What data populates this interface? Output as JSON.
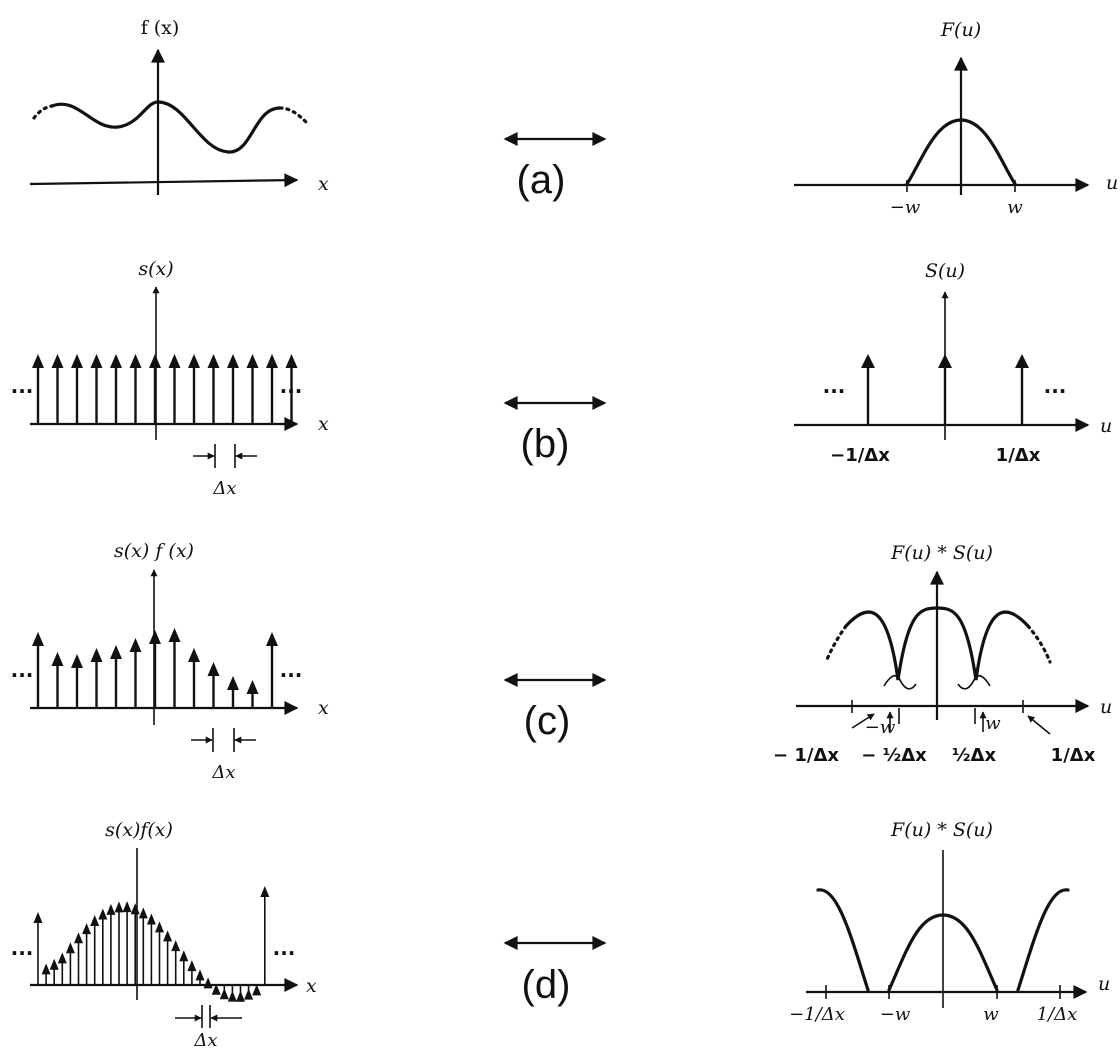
{
  "rows": [
    {
      "label": "(a)",
      "left": {
        "title": "f (x)",
        "axis": "x"
      },
      "right": {
        "title": "F(u)",
        "axis": "u",
        "ticks": [
          "−w",
          "w"
        ]
      }
    },
    {
      "label": "(b)",
      "left": {
        "title": "s(x)",
        "axis": "x",
        "spacing": "Δx",
        "ellipsis": "···"
      },
      "right": {
        "title": "S(u)",
        "axis": "u",
        "ticks": [
          "−1/Δx",
          "1/Δx"
        ],
        "ellipsis": "···"
      }
    },
    {
      "label": "(c)",
      "left": {
        "title": "s(x) f (x)",
        "axis": "x",
        "spacing": "Δx",
        "ellipsis": "···"
      },
      "right": {
        "title": "F(u) * S(u)",
        "axis": "u",
        "ticks": [
          "− 1/Δx",
          "− ½Δx",
          "½Δx",
          "1/Δx",
          "−w",
          "w"
        ]
      }
    },
    {
      "label": "(d)",
      "left": {
        "title": "s(x)f(x)",
        "axis": "x",
        "spacing": "Δx",
        "ellipsis": "···"
      },
      "right": {
        "title": "F(u) * S(u)",
        "axis": "u",
        "ticks": [
          "−1/Δx",
          "−w",
          "w",
          "1/Δx"
        ]
      }
    }
  ]
}
